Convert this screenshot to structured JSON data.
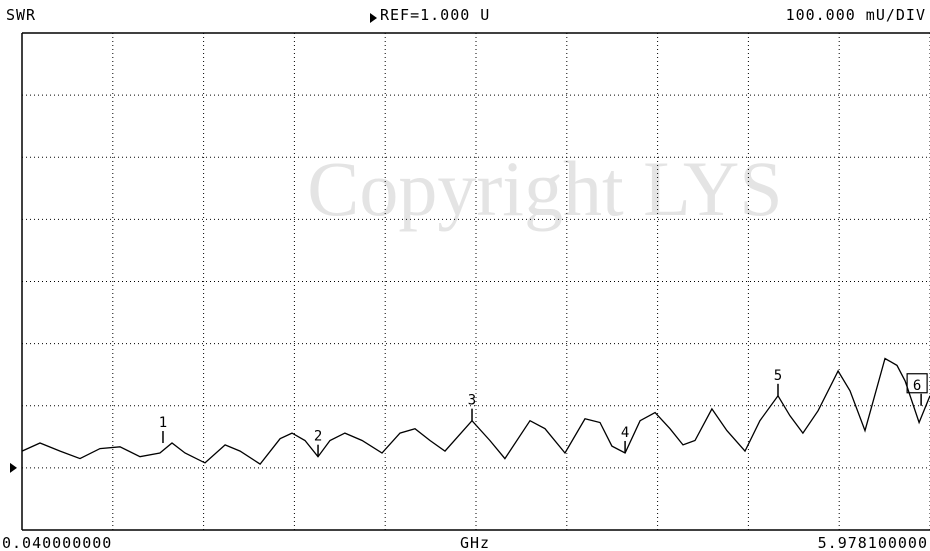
{
  "chart_data": {
    "type": "line",
    "title": "SWR",
    "ref_label": "REF=1.000 U",
    "scale_label": "100.000 mU/DIV",
    "start_label": "0.040000000",
    "unit_label": "GHz",
    "stop_label": "5.978100000",
    "watermark": "Copyright LYS",
    "ref": 1.0,
    "xlim": [
      0.04,
      5.9781
    ],
    "ylim": [
      0.9,
      1.7
    ],
    "xticks": [
      0.04,
      0.63381,
      1.22762,
      1.82143,
      2.41524,
      3.00905,
      3.60286,
      4.19667,
      4.79048,
      5.38429,
      5.9781
    ],
    "yticks": [
      0.9,
      1.0,
      1.1,
      1.2,
      1.3,
      1.4,
      1.5,
      1.6,
      1.7
    ],
    "grid": true,
    "series": [
      {
        "name": "SWR",
        "color": "#000000",
        "x": [
          0.04,
          0.158,
          0.289,
          0.419,
          0.55,
          0.681,
          0.812,
          0.942,
          1.021,
          1.106,
          1.237,
          1.368,
          1.466,
          1.597,
          1.728,
          1.806,
          1.891,
          1.976,
          2.054,
          2.152,
          2.264,
          2.394,
          2.512,
          2.61,
          2.708,
          2.806,
          2.983,
          3.1,
          3.198,
          3.362,
          3.46,
          3.591,
          3.722,
          3.82,
          3.898,
          3.984,
          4.082,
          4.18,
          4.278,
          4.363,
          4.441,
          4.552,
          4.65,
          4.768,
          4.866,
          4.984,
          5.062,
          5.147,
          5.246,
          5.377,
          5.455,
          5.553,
          5.684,
          5.762,
          5.815,
          5.907,
          5.978
        ],
        "values": [
          1.027,
          1.04,
          1.027,
          1.015,
          1.031,
          1.034,
          1.018,
          1.024,
          1.04,
          1.024,
          1.008,
          1.037,
          1.027,
          1.006,
          1.047,
          1.056,
          1.044,
          1.018,
          1.044,
          1.056,
          1.044,
          1.024,
          1.056,
          1.063,
          1.044,
          1.027,
          1.076,
          1.044,
          1.015,
          1.076,
          1.063,
          1.024,
          1.079,
          1.073,
          1.035,
          1.024,
          1.076,
          1.089,
          1.063,
          1.037,
          1.044,
          1.095,
          1.06,
          1.027,
          1.076,
          1.116,
          1.084,
          1.056,
          1.092,
          1.156,
          1.124,
          1.06,
          1.176,
          1.165,
          1.14,
          1.073,
          1.116
        ]
      }
    ],
    "markers": [
      {
        "label": "1",
        "x": 0.962,
        "y": 1.04
      },
      {
        "label": "2",
        "x": 1.976,
        "y": 1.018
      },
      {
        "label": "3",
        "x": 2.983,
        "y": 1.076
      },
      {
        "label": "4",
        "x": 3.984,
        "y": 1.024
      },
      {
        "label": "5",
        "x": 4.984,
        "y": 1.116
      },
      {
        "label": "6",
        "x": 5.92,
        "y": 1.1
      }
    ],
    "active_marker": 5
  }
}
